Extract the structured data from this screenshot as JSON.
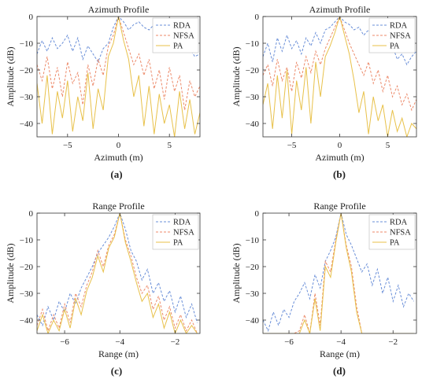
{
  "colors": {
    "RDA": "#6a8fd8",
    "NFSA": "#ec8a6a",
    "PA": "#e8c14a"
  },
  "chart_data": [
    {
      "type": "line",
      "panel": "a",
      "caption": "(a)",
      "title": "Azimuth Profile",
      "xlabel": "Azimuth (m)",
      "ylabel": "Amplitude (dB)",
      "xlim": [
        -8,
        8
      ],
      "ylim": [
        -45,
        0
      ],
      "xticks": [
        -5,
        0,
        5
      ],
      "yticks": [
        0,
        -10,
        -20,
        -30,
        -40
      ],
      "grid": false,
      "legend_position": "top-right",
      "series": [
        {
          "name": "RDA",
          "style": "dashed",
          "x": [
            -8,
            -7.5,
            -7,
            -6.5,
            -6,
            -5.5,
            -5,
            -4.5,
            -4,
            -3.5,
            -3,
            -2.5,
            -2,
            -1.5,
            -1,
            -0.5,
            0,
            0.5,
            1,
            1.5,
            2,
            2.5,
            3,
            3.5,
            4,
            4.5,
            5,
            5.5,
            6,
            6.5,
            7,
            7.5,
            8
          ],
          "y": [
            -14,
            -9,
            -13,
            -8,
            -12,
            -10,
            -7,
            -13,
            -8,
            -16,
            -11,
            -14,
            -17,
            -12,
            -10,
            -4,
            0,
            -2,
            -5,
            -3,
            -2,
            -4,
            -5,
            -3,
            -5,
            -7,
            -6,
            -8,
            -13,
            -10,
            -12,
            -15,
            -14
          ]
        },
        {
          "name": "NFSA",
          "style": "dashed",
          "x": [
            -8,
            -7.5,
            -7,
            -6.5,
            -6,
            -5.5,
            -5,
            -4.5,
            -4,
            -3.5,
            -3,
            -2.5,
            -2,
            -1.5,
            -1,
            -0.5,
            0,
            0.5,
            1,
            1.5,
            2,
            2.5,
            3,
            3.5,
            4,
            4.5,
            5,
            5.5,
            6,
            6.5,
            7,
            7.5,
            8
          ],
          "y": [
            -18,
            -24,
            -15,
            -27,
            -19,
            -30,
            -17,
            -25,
            -21,
            -33,
            -18,
            -26,
            -16,
            -22,
            -11,
            -7,
            0,
            -6,
            -12,
            -18,
            -14,
            -22,
            -16,
            -27,
            -20,
            -31,
            -19,
            -28,
            -22,
            -35,
            -24,
            -30,
            -26
          ]
        },
        {
          "name": "PA",
          "style": "solid",
          "x": [
            -8,
            -7.5,
            -7,
            -6.5,
            -6,
            -5.5,
            -5,
            -4.5,
            -4,
            -3.5,
            -3,
            -2.5,
            -2,
            -1.5,
            -1,
            -0.5,
            0,
            0.5,
            1,
            1.5,
            2,
            2.5,
            3,
            3.5,
            4,
            4.5,
            5,
            5.5,
            6,
            6.5,
            7,
            7.5,
            8
          ],
          "y": [
            -25,
            -40,
            -22,
            -44,
            -28,
            -38,
            -24,
            -43,
            -30,
            -39,
            -21,
            -42,
            -27,
            -35,
            -15,
            -10,
            0,
            -9,
            -16,
            -30,
            -22,
            -41,
            -26,
            -44,
            -29,
            -40,
            -33,
            -45,
            -28,
            -42,
            -31,
            -44,
            -36
          ]
        }
      ]
    },
    {
      "type": "line",
      "panel": "b",
      "caption": "(b)",
      "title": "Azimuth Profile",
      "xlabel": "Azimuth (m)",
      "ylabel": "Amplitude (dB)",
      "xlim": [
        -8,
        8
      ],
      "ylim": [
        -45,
        0
      ],
      "xticks": [
        -5,
        0,
        5
      ],
      "yticks": [
        0,
        -10,
        -20,
        -30,
        -40
      ],
      "grid": false,
      "legend_position": "top-right",
      "series": [
        {
          "name": "RDA",
          "style": "dashed",
          "x": [
            -8,
            -7.5,
            -7,
            -6.5,
            -6,
            -5.5,
            -5,
            -4.5,
            -4,
            -3.5,
            -3,
            -2.5,
            -2,
            -1.5,
            -1,
            -0.5,
            0,
            0.5,
            1,
            1.5,
            2,
            2.5,
            3,
            3.5,
            4,
            4.5,
            5,
            5.5,
            6,
            6.5,
            7,
            7.5,
            8
          ],
          "y": [
            -15,
            -10,
            -17,
            -8,
            -13,
            -7,
            -12,
            -9,
            -14,
            -8,
            -11,
            -6,
            -10,
            -5,
            -4,
            -2,
            0,
            -2,
            -3,
            -5,
            -4,
            -7,
            -5,
            -8,
            -10,
            -9,
            -13,
            -11,
            -16,
            -14,
            -18,
            -15,
            -13
          ]
        },
        {
          "name": "NFSA",
          "style": "dashed",
          "x": [
            -8,
            -7.5,
            -7,
            -6.5,
            -6,
            -5.5,
            -5,
            -4.5,
            -4,
            -3.5,
            -3,
            -2.5,
            -2,
            -1.5,
            -1,
            -0.5,
            0,
            0.5,
            1,
            1.5,
            2,
            2.5,
            3,
            3.5,
            4,
            4.5,
            5,
            5.5,
            6,
            6.5,
            7,
            7.5,
            8
          ],
          "y": [
            -22,
            -18,
            -26,
            -16,
            -24,
            -19,
            -28,
            -17,
            -23,
            -15,
            -21,
            -13,
            -18,
            -12,
            -8,
            -4,
            0,
            -5,
            -10,
            -14,
            -18,
            -22,
            -17,
            -25,
            -20,
            -28,
            -22,
            -30,
            -26,
            -33,
            -29,
            -35,
            -31
          ]
        },
        {
          "name": "PA",
          "style": "solid",
          "x": [
            -8,
            -7.5,
            -7,
            -6.5,
            -6,
            -5.5,
            -5,
            -4.5,
            -4,
            -3.5,
            -3,
            -2.5,
            -2,
            -1.5,
            -1,
            -0.5,
            0,
            0.5,
            1,
            1.5,
            2,
            2.5,
            3,
            3.5,
            4,
            4.5,
            5,
            5.5,
            6,
            6.5,
            7,
            7.5,
            8
          ],
          "y": [
            -33,
            -25,
            -42,
            -22,
            -38,
            -20,
            -44,
            -24,
            -35,
            -19,
            -40,
            -17,
            -30,
            -15,
            -11,
            -6,
            0,
            -7,
            -14,
            -24,
            -36,
            -28,
            -44,
            -30,
            -39,
            -33,
            -45,
            -35,
            -43,
            -38,
            -45,
            -40,
            -42
          ]
        }
      ]
    },
    {
      "type": "line",
      "panel": "c",
      "caption": "(c)",
      "title": "Range Profile",
      "xlabel": "Range (m)",
      "ylabel": "Amplitude (dB)",
      "xlim": [
        -7,
        -1.1
      ],
      "ylim": [
        -45,
        0
      ],
      "xticks": [
        -6,
        -4,
        -2
      ],
      "yticks": [
        0,
        -10,
        -20,
        -30,
        -40
      ],
      "grid": false,
      "legend_position": "top-right",
      "series": [
        {
          "name": "RDA",
          "style": "dashed",
          "x": [
            -7,
            -6.8,
            -6.6,
            -6.4,
            -6.2,
            -6,
            -5.8,
            -5.6,
            -5.4,
            -5.2,
            -5,
            -4.8,
            -4.6,
            -4.4,
            -4.2,
            -4,
            -3.8,
            -3.6,
            -3.4,
            -3.2,
            -3,
            -2.8,
            -2.6,
            -2.4,
            -2.2,
            -2,
            -1.8,
            -1.6,
            -1.4,
            -1.2
          ],
          "y": [
            -38,
            -42,
            -35,
            -40,
            -33,
            -37,
            -30,
            -34,
            -28,
            -24,
            -20,
            -15,
            -12,
            -9,
            -5,
            0,
            -6,
            -14,
            -18,
            -25,
            -21,
            -30,
            -26,
            -33,
            -29,
            -37,
            -31,
            -39,
            -34,
            -41
          ]
        },
        {
          "name": "NFSA",
          "style": "dashed",
          "x": [
            -7,
            -6.8,
            -6.6,
            -6.4,
            -6.2,
            -6,
            -5.8,
            -5.6,
            -5.4,
            -5.2,
            -5,
            -4.8,
            -4.6,
            -4.4,
            -4.2,
            -4,
            -3.8,
            -3.6,
            -3.4,
            -3.2,
            -3,
            -2.8,
            -2.6,
            -2.4,
            -2.2,
            -2,
            -1.8,
            -1.6,
            -1.4,
            -1.2
          ],
          "y": [
            -42,
            -36,
            -44,
            -38,
            -43,
            -34,
            -41,
            -30,
            -35,
            -27,
            -22,
            -14,
            -20,
            -12,
            -8,
            0,
            -10,
            -16,
            -24,
            -30,
            -27,
            -36,
            -31,
            -40,
            -35,
            -43,
            -38,
            -44,
            -40,
            -45
          ]
        },
        {
          "name": "PA",
          "style": "solid",
          "x": [
            -7,
            -6.8,
            -6.6,
            -6.4,
            -6.2,
            -6,
            -5.8,
            -5.6,
            -5.4,
            -5.2,
            -5,
            -4.8,
            -4.6,
            -4.4,
            -4.2,
            -4,
            -3.8,
            -3.6,
            -3.4,
            -3.2,
            -3,
            -2.8,
            -2.6,
            -2.4,
            -2.2,
            -2,
            -1.8,
            -1.6,
            -1.4,
            -1.2
          ],
          "y": [
            -44,
            -38,
            -45,
            -40,
            -44,
            -36,
            -43,
            -32,
            -38,
            -29,
            -24,
            -16,
            -22,
            -13,
            -9,
            0,
            -11,
            -18,
            -26,
            -33,
            -30,
            -39,
            -34,
            -43,
            -37,
            -45,
            -40,
            -45,
            -42,
            -45
          ]
        }
      ]
    },
    {
      "type": "line",
      "panel": "d",
      "caption": "(d)",
      "title": "Range Profile",
      "xlabel": "Range (m)",
      "ylabel": "Amplitude (dB)",
      "xlim": [
        -7,
        -1.1
      ],
      "ylim": [
        -45,
        0
      ],
      "xticks": [
        -6,
        -4,
        -2
      ],
      "yticks": [
        0,
        -10,
        -20,
        -30,
        -40
      ],
      "grid": false,
      "legend_position": "top-right",
      "series": [
        {
          "name": "RDA",
          "style": "dashed",
          "x": [
            -7,
            -6.8,
            -6.6,
            -6.4,
            -6.2,
            -6,
            -5.8,
            -5.6,
            -5.4,
            -5.2,
            -5,
            -4.8,
            -4.6,
            -4.4,
            -4.2,
            -4,
            -3.8,
            -3.6,
            -3.4,
            -3.2,
            -3,
            -2.8,
            -2.6,
            -2.4,
            -2.2,
            -2,
            -1.8,
            -1.6,
            -1.4,
            -1.2
          ],
          "y": [
            -40,
            -44,
            -37,
            -42,
            -36,
            -39,
            -33,
            -30,
            -26,
            -32,
            -23,
            -28,
            -18,
            -14,
            -9,
            0,
            -8,
            -12,
            -17,
            -22,
            -19,
            -27,
            -21,
            -30,
            -24,
            -33,
            -27,
            -35,
            -30,
            -33
          ]
        },
        {
          "name": "NFSA",
          "style": "dashed",
          "x": [
            -7,
            -6.8,
            -6.6,
            -6.4,
            -6.2,
            -6,
            -5.8,
            -5.6,
            -5.4,
            -5.2,
            -5,
            -4.8,
            -4.6,
            -4.4,
            -4.2,
            -4,
            -3.8,
            -3.6,
            -3.4,
            -3.2,
            -3,
            -2.8,
            -2.6,
            -2.4,
            -2.2,
            -2,
            -1.8,
            -1.6,
            -1.4,
            -1.2
          ],
          "y": [
            -45,
            -45,
            -45,
            -45,
            -45,
            -45,
            -45,
            -44,
            -38,
            -45,
            -30,
            -42,
            -18,
            -22,
            -10,
            0,
            -12,
            -20,
            -35,
            -45,
            -45,
            -45,
            -45,
            -45,
            -45,
            -45,
            -45,
            -45,
            -45,
            -45
          ]
        },
        {
          "name": "PA",
          "style": "solid",
          "x": [
            -7,
            -6.8,
            -6.6,
            -6.4,
            -6.2,
            -6,
            -5.8,
            -5.6,
            -5.4,
            -5.2,
            -5,
            -4.8,
            -4.6,
            -4.4,
            -4.2,
            -4,
            -3.8,
            -3.6,
            -3.4,
            -3.2,
            -3,
            -2.8,
            -2.6,
            -2.4,
            -2.2,
            -2,
            -1.8,
            -1.6,
            -1.4,
            -1.2
          ],
          "y": [
            -45,
            -45,
            -45,
            -45,
            -45,
            -45,
            -45,
            -45,
            -40,
            -45,
            -32,
            -44,
            -20,
            -24,
            -11,
            0,
            -13,
            -22,
            -37,
            -45,
            -45,
            -45,
            -45,
            -45,
            -45,
            -45,
            -45,
            -45,
            -45,
            -45
          ]
        }
      ]
    }
  ]
}
